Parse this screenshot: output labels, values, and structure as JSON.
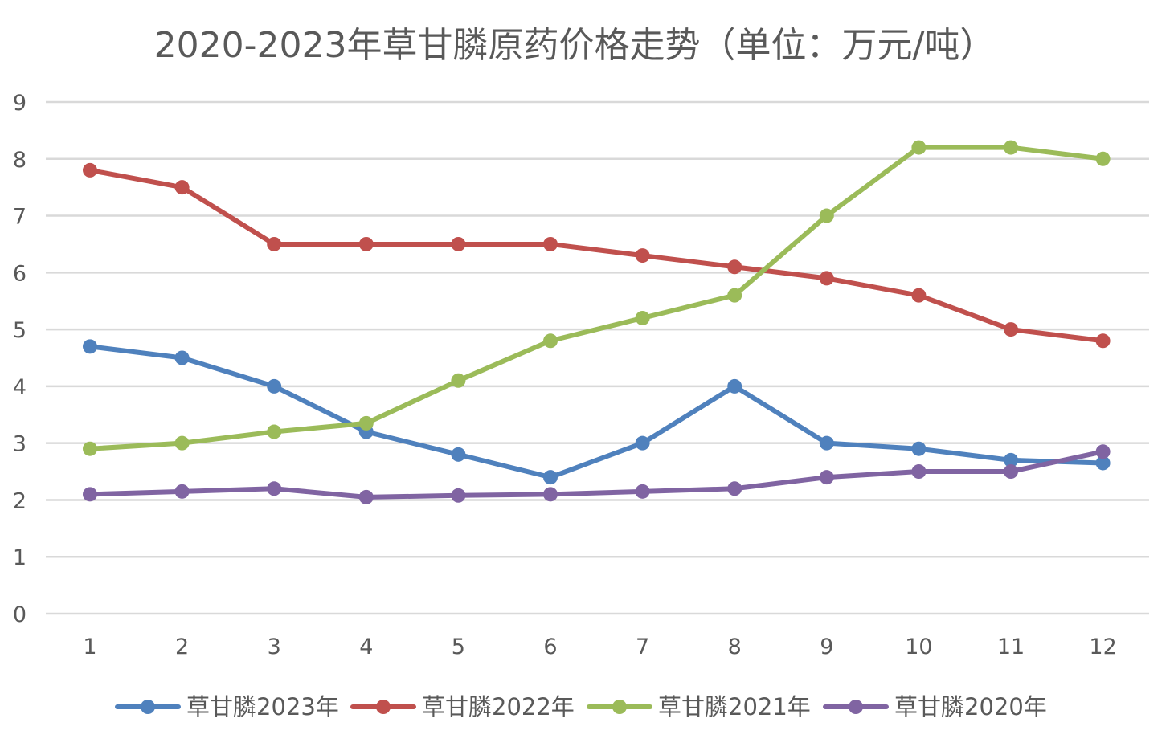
{
  "chart_data": {
    "type": "line",
    "title": "2020-2023年草甘膦原药价格走势（单位：万元/吨）",
    "xlabel": "",
    "ylabel": "",
    "categories": [
      "1",
      "2",
      "3",
      "4",
      "5",
      "6",
      "7",
      "8",
      "9",
      "10",
      "11",
      "12"
    ],
    "ylim": [
      0,
      9
    ],
    "yticks": [
      "0",
      "1",
      "2",
      "3",
      "4",
      "5",
      "6",
      "7",
      "8",
      "9"
    ],
    "grid": true,
    "legend_position": "bottom",
    "series": [
      {
        "name": "草甘膦2023年",
        "color": "#4F81BD",
        "values": [
          4.7,
          4.5,
          4.0,
          3.2,
          2.8,
          2.4,
          3.0,
          4.0,
          3.0,
          2.9,
          2.7,
          2.65
        ]
      },
      {
        "name": "草甘膦2022年",
        "color": "#C0504D",
        "values": [
          7.8,
          7.5,
          6.5,
          6.5,
          6.5,
          6.5,
          6.3,
          6.1,
          5.9,
          5.6,
          5.0,
          4.8
        ]
      },
      {
        "name": "草甘膦2021年",
        "color": "#9BBB59",
        "values": [
          2.9,
          3.0,
          3.2,
          3.35,
          4.1,
          4.8,
          5.2,
          5.6,
          7.0,
          8.2,
          8.2,
          8.0
        ]
      },
      {
        "name": "草甘膦2020年",
        "color": "#8064A2",
        "values": [
          2.1,
          2.15,
          2.2,
          2.05,
          2.08,
          2.1,
          2.15,
          2.2,
          2.4,
          2.5,
          2.5,
          2.85
        ]
      }
    ]
  }
}
